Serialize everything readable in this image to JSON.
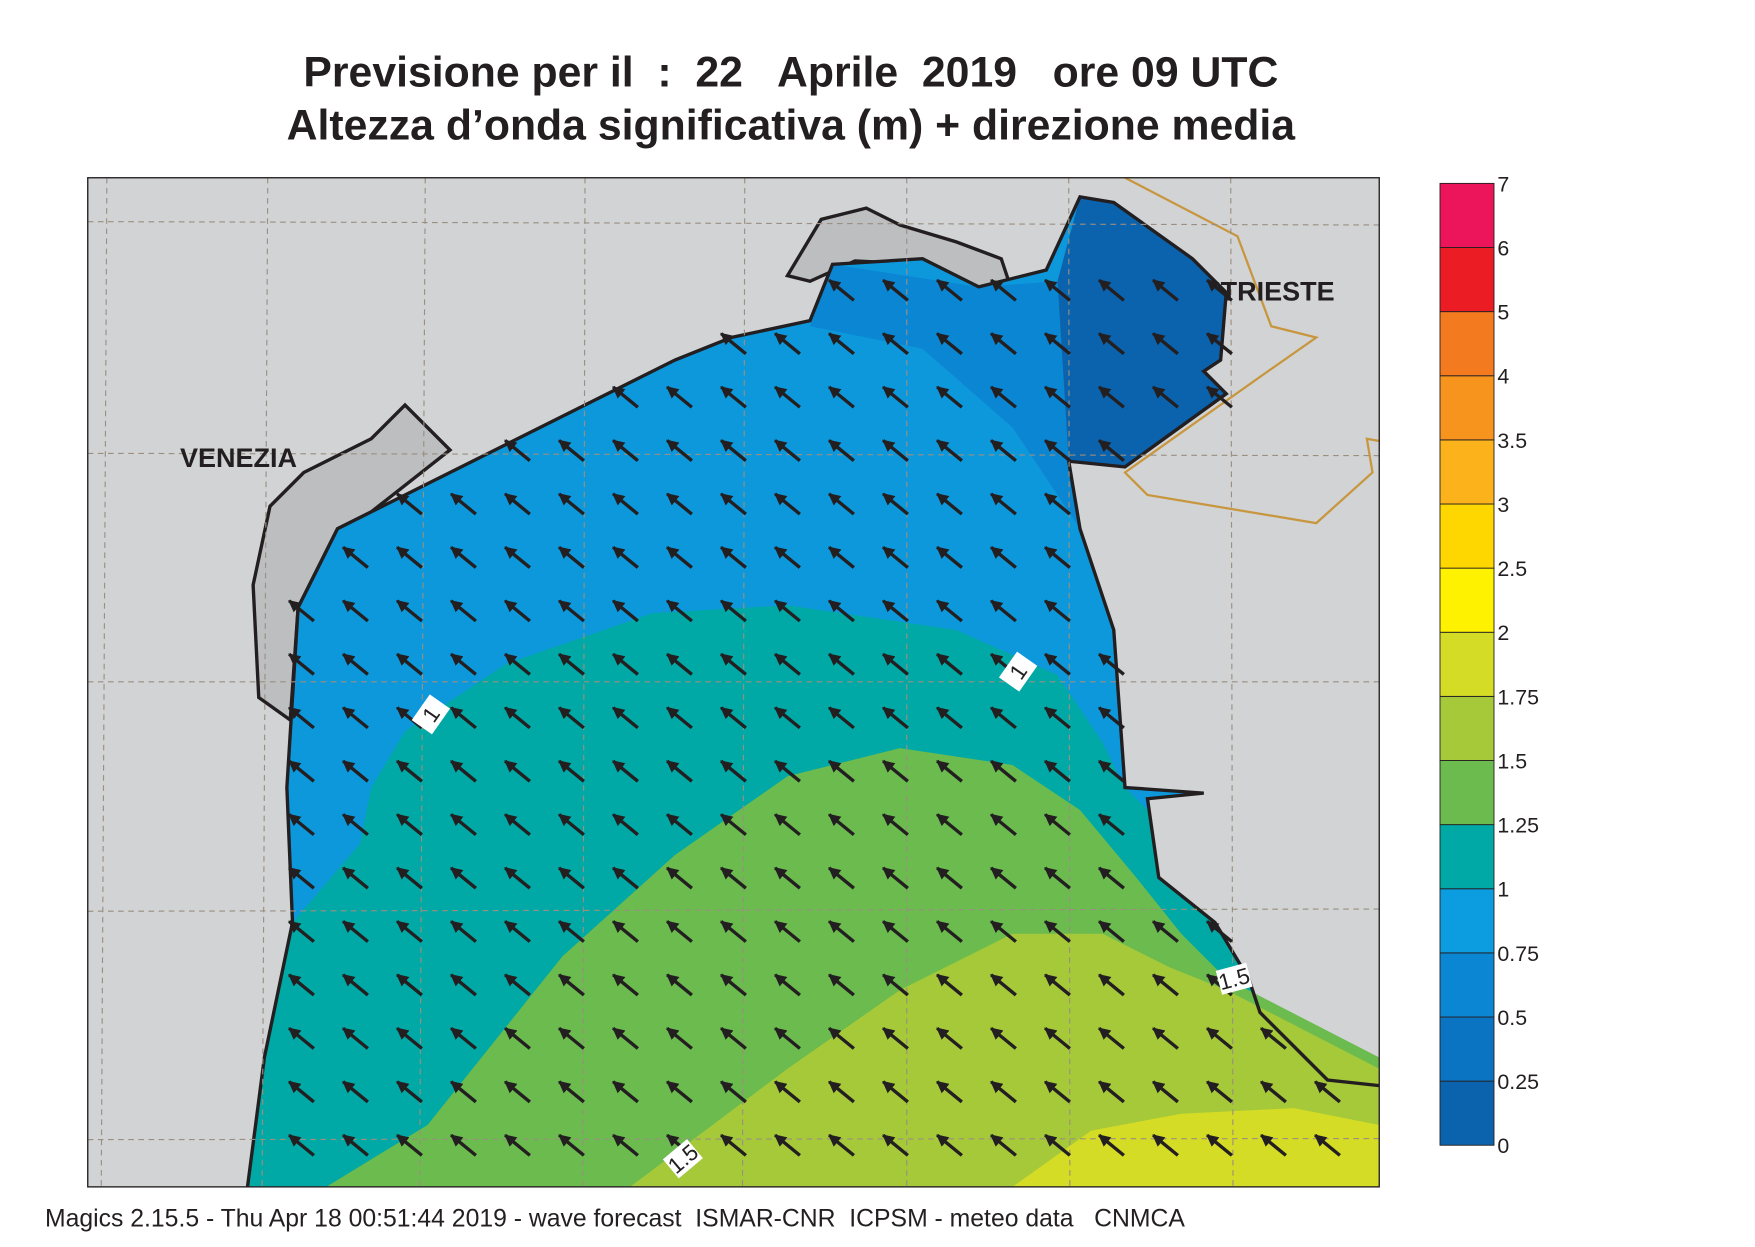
{
  "header": {
    "title": "Previsione per il  :  22   Aprile  2019   ore 09 UTC",
    "subtitle": "Altezza d’onda significativa (m) + direzione media"
  },
  "map": {
    "places": [
      "VENEZIA",
      "TRIESTE"
    ],
    "contour_labels": [
      1,
      1,
      1.5,
      1.5
    ]
  },
  "colorbar": {
    "levels": [
      0,
      0.25,
      0.5,
      0.75,
      1,
      1.25,
      1.5,
      1.75,
      2,
      2.5,
      3,
      3.5,
      4,
      5,
      6,
      7
    ],
    "colors": [
      "#0b62ad",
      "#0a74c2",
      "#0b86d3",
      "#0c9de0",
      "#00a9a5",
      "#6bbb4f",
      "#a6c93a",
      "#d5dc26",
      "#fff200",
      "#ffd700",
      "#fbb21b",
      "#f7941d",
      "#f47a20",
      "#ec1c24",
      "#ec145a"
    ]
  },
  "footer": "Magics 2.15.5 - Thu Apr 18 00:51:44 2019 - wave forecast  ISMAR-CNR  ICPSM - meteo data   CNMCA"
}
